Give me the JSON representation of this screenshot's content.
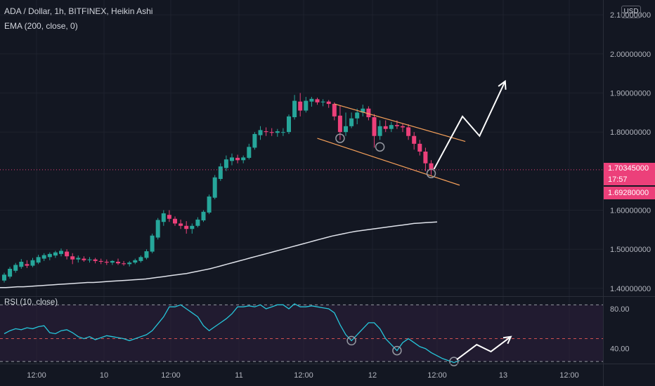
{
  "header": {
    "symbol_line": "ADA / Dollar, 1h, BITFINEX, Heikin Ashi",
    "ema_label": "EMA (200, close, 0)",
    "rsi_label": "RSI (10, close)",
    "currency_button": "USD"
  },
  "price_tags": {
    "current": "1.70345000",
    "countdown": "17:57",
    "low": "1.69280000"
  },
  "colors": {
    "background": "#131722",
    "up": "#26a69a",
    "down": "#ef5350",
    "down_body": "#ec407a",
    "ema": "#e0e3eb",
    "rsi_line": "#26c6da",
    "rsi_band": "#2d1f3d",
    "channel": "#f7a15a",
    "arrow": "#ffffff",
    "grid": "#1e222d",
    "price_tag": "#ec407a"
  },
  "chart_data": [
    {
      "type": "candlestick",
      "title": "ADA / Dollar, 1h, BITFINEX, Heikin Ashi",
      "y_axis": {
        "ticks": [
          "2.10000000",
          "2.00000000",
          "1.90000000",
          "1.80000000",
          "1.60000000",
          "1.50000000",
          "1.40000000"
        ],
        "tick_values": [
          2.1,
          2.0,
          1.9,
          1.8,
          1.6,
          1.5,
          1.4
        ],
        "ylim": [
          1.38,
          2.12
        ]
      },
      "x_axis": {
        "ticks": [
          "12:00",
          "10",
          "12:00",
          "11",
          "12:00",
          "12",
          "12:00",
          "13",
          "12:00"
        ]
      },
      "current_price": 1.70345,
      "low_line": 1.6928,
      "candles": [
        {
          "o": 1.42,
          "h": 1.44,
          "l": 1.415,
          "c": 1.435
        },
        {
          "o": 1.43,
          "h": 1.455,
          "l": 1.425,
          "c": 1.45
        },
        {
          "o": 1.445,
          "h": 1.465,
          "l": 1.44,
          "c": 1.46
        },
        {
          "o": 1.455,
          "h": 1.475,
          "l": 1.45,
          "c": 1.468
        },
        {
          "o": 1.462,
          "h": 1.472,
          "l": 1.452,
          "c": 1.458
        },
        {
          "o": 1.458,
          "h": 1.478,
          "l": 1.454,
          "c": 1.472
        },
        {
          "o": 1.466,
          "h": 1.486,
          "l": 1.462,
          "c": 1.48
        },
        {
          "o": 1.476,
          "h": 1.49,
          "l": 1.47,
          "c": 1.485
        },
        {
          "o": 1.48,
          "h": 1.492,
          "l": 1.472,
          "c": 1.488
        },
        {
          "o": 1.484,
          "h": 1.496,
          "l": 1.478,
          "c": 1.492
        },
        {
          "o": 1.488,
          "h": 1.502,
          "l": 1.482,
          "c": 1.496
        },
        {
          "o": 1.494,
          "h": 1.5,
          "l": 1.474,
          "c": 1.482
        },
        {
          "o": 1.482,
          "h": 1.49,
          "l": 1.462,
          "c": 1.474
        },
        {
          "o": 1.474,
          "h": 1.484,
          "l": 1.466,
          "c": 1.478
        },
        {
          "o": 1.476,
          "h": 1.482,
          "l": 1.468,
          "c": 1.472
        },
        {
          "o": 1.472,
          "h": 1.48,
          "l": 1.466,
          "c": 1.474
        },
        {
          "o": 1.474,
          "h": 1.478,
          "l": 1.464,
          "c": 1.47
        },
        {
          "o": 1.47,
          "h": 1.476,
          "l": 1.462,
          "c": 1.468
        },
        {
          "o": 1.468,
          "h": 1.474,
          "l": 1.46,
          "c": 1.466
        },
        {
          "o": 1.466,
          "h": 1.472,
          "l": 1.46,
          "c": 1.47
        },
        {
          "o": 1.468,
          "h": 1.476,
          "l": 1.46,
          "c": 1.464
        },
        {
          "o": 1.464,
          "h": 1.47,
          "l": 1.458,
          "c": 1.462
        },
        {
          "o": 1.462,
          "h": 1.47,
          "l": 1.456,
          "c": 1.466
        },
        {
          "o": 1.466,
          "h": 1.476,
          "l": 1.462,
          "c": 1.472
        },
        {
          "o": 1.47,
          "h": 1.484,
          "l": 1.466,
          "c": 1.48
        },
        {
          "o": 1.478,
          "h": 1.5,
          "l": 1.474,
          "c": 1.495
        },
        {
          "o": 1.494,
          "h": 1.54,
          "l": 1.49,
          "c": 1.535
        },
        {
          "o": 1.53,
          "h": 1.58,
          "l": 1.525,
          "c": 1.575
        },
        {
          "o": 1.57,
          "h": 1.6,
          "l": 1.56,
          "c": 1.592
        },
        {
          "o": 1.588,
          "h": 1.6,
          "l": 1.57,
          "c": 1.578
        },
        {
          "o": 1.578,
          "h": 1.584,
          "l": 1.56,
          "c": 1.566
        },
        {
          "o": 1.566,
          "h": 1.576,
          "l": 1.552,
          "c": 1.56
        },
        {
          "o": 1.56,
          "h": 1.572,
          "l": 1.54,
          "c": 1.552
        },
        {
          "o": 1.552,
          "h": 1.566,
          "l": 1.54,
          "c": 1.56
        },
        {
          "o": 1.56,
          "h": 1.582,
          "l": 1.556,
          "c": 1.576
        },
        {
          "o": 1.574,
          "h": 1.6,
          "l": 1.57,
          "c": 1.596
        },
        {
          "o": 1.594,
          "h": 1.64,
          "l": 1.59,
          "c": 1.635
        },
        {
          "o": 1.632,
          "h": 1.69,
          "l": 1.628,
          "c": 1.684
        },
        {
          "o": 1.68,
          "h": 1.72,
          "l": 1.675,
          "c": 1.712
        },
        {
          "o": 1.708,
          "h": 1.74,
          "l": 1.7,
          "c": 1.73
        },
        {
          "o": 1.726,
          "h": 1.745,
          "l": 1.715,
          "c": 1.735
        },
        {
          "o": 1.734,
          "h": 1.742,
          "l": 1.72,
          "c": 1.728
        },
        {
          "o": 1.728,
          "h": 1.74,
          "l": 1.72,
          "c": 1.735
        },
        {
          "o": 1.734,
          "h": 1.77,
          "l": 1.73,
          "c": 1.762
        },
        {
          "o": 1.76,
          "h": 1.8,
          "l": 1.755,
          "c": 1.795
        },
        {
          "o": 1.792,
          "h": 1.815,
          "l": 1.78,
          "c": 1.805
        },
        {
          "o": 1.802,
          "h": 1.812,
          "l": 1.79,
          "c": 1.8
        },
        {
          "o": 1.8,
          "h": 1.81,
          "l": 1.79,
          "c": 1.798
        },
        {
          "o": 1.798,
          "h": 1.808,
          "l": 1.788,
          "c": 1.802
        },
        {
          "o": 1.8,
          "h": 1.81,
          "l": 1.79,
          "c": 1.8
        },
        {
          "o": 1.8,
          "h": 1.845,
          "l": 1.795,
          "c": 1.84
        },
        {
          "o": 1.838,
          "h": 1.895,
          "l": 1.832,
          "c": 1.88
        },
        {
          "o": 1.878,
          "h": 1.9,
          "l": 1.84,
          "c": 1.855
        },
        {
          "o": 1.855,
          "h": 1.89,
          "l": 1.85,
          "c": 1.88
        },
        {
          "o": 1.878,
          "h": 1.89,
          "l": 1.865,
          "c": 1.885
        },
        {
          "o": 1.884,
          "h": 1.888,
          "l": 1.87,
          "c": 1.876
        },
        {
          "o": 1.876,
          "h": 1.884,
          "l": 1.866,
          "c": 1.878
        },
        {
          "o": 1.878,
          "h": 1.882,
          "l": 1.862,
          "c": 1.872
        },
        {
          "o": 1.872,
          "h": 1.876,
          "l": 1.83,
          "c": 1.84
        },
        {
          "o": 1.842,
          "h": 1.868,
          "l": 1.78,
          "c": 1.8
        },
        {
          "o": 1.8,
          "h": 1.85,
          "l": 1.79,
          "c": 1.815
        },
        {
          "o": 1.815,
          "h": 1.85,
          "l": 1.81,
          "c": 1.835
        },
        {
          "o": 1.835,
          "h": 1.86,
          "l": 1.82,
          "c": 1.85
        },
        {
          "o": 1.85,
          "h": 1.87,
          "l": 1.84,
          "c": 1.86
        },
        {
          "o": 1.86,
          "h": 1.866,
          "l": 1.83,
          "c": 1.838
        },
        {
          "o": 1.838,
          "h": 1.846,
          "l": 1.76,
          "c": 1.79
        },
        {
          "o": 1.79,
          "h": 1.83,
          "l": 1.78,
          "c": 1.815
        },
        {
          "o": 1.815,
          "h": 1.83,
          "l": 1.8,
          "c": 1.808
        },
        {
          "o": 1.808,
          "h": 1.826,
          "l": 1.8,
          "c": 1.818
        },
        {
          "o": 1.818,
          "h": 1.83,
          "l": 1.808,
          "c": 1.815
        },
        {
          "o": 1.815,
          "h": 1.822,
          "l": 1.8,
          "c": 1.812
        },
        {
          "o": 1.812,
          "h": 1.82,
          "l": 1.78,
          "c": 1.79
        },
        {
          "o": 1.79,
          "h": 1.8,
          "l": 1.755,
          "c": 1.77
        },
        {
          "o": 1.77,
          "h": 1.78,
          "l": 1.74,
          "c": 1.75
        },
        {
          "o": 1.75,
          "h": 1.76,
          "l": 1.7,
          "c": 1.72
        },
        {
          "o": 1.72,
          "h": 1.728,
          "l": 1.69,
          "c": 1.703
        }
      ],
      "ema_200": [
        1.402,
        1.402,
        1.403,
        1.404,
        1.404,
        1.405,
        1.406,
        1.407,
        1.408,
        1.409,
        1.41,
        1.411,
        1.412,
        1.413,
        1.414,
        1.415,
        1.415,
        1.416,
        1.417,
        1.418,
        1.419,
        1.42,
        1.421,
        1.422,
        1.423,
        1.424,
        1.426,
        1.428,
        1.43,
        1.432,
        1.434,
        1.436,
        1.438,
        1.441,
        1.444,
        1.447,
        1.45,
        1.454,
        1.458,
        1.462,
        1.466,
        1.47,
        1.474,
        1.478,
        1.482,
        1.486,
        1.49,
        1.494,
        1.498,
        1.502,
        1.506,
        1.51,
        1.514,
        1.518,
        1.522,
        1.526,
        1.53,
        1.534,
        1.537,
        1.54,
        1.543,
        1.546,
        1.548,
        1.55,
        1.552,
        1.554,
        1.556,
        1.558,
        1.56,
        1.562,
        1.564,
        1.566,
        1.567,
        1.568,
        1.569,
        1.57
      ],
      "annotations": {
        "channel_upper": {
          "from": [
            58,
            1.872
          ],
          "to": [
            81,
            1.776
          ]
        },
        "channel_lower": {
          "from": [
            55,
            1.784
          ],
          "to": [
            80,
            1.664
          ]
        },
        "circles": [
          {
            "i": 59,
            "v": 1.784
          },
          {
            "i": 66,
            "v": 1.762
          },
          {
            "i": 75,
            "v": 1.694
          }
        ],
        "arrow": [
          [
            75.5,
            1.705
          ],
          [
            80.5,
            1.84
          ],
          [
            83.5,
            1.79
          ],
          [
            88,
            1.93
          ]
        ]
      }
    },
    {
      "type": "line",
      "title": "RSI (10, close)",
      "y_axis": {
        "ticks": [
          "80.00",
          "40.00"
        ],
        "tick_values": [
          80,
          40
        ],
        "ylim": [
          25,
          92
        ]
      },
      "levels": {
        "upper": 84,
        "middle": 50,
        "lower": 27
      },
      "values": [
        55,
        58,
        60,
        59,
        61,
        60,
        62,
        63,
        56,
        55,
        58,
        59,
        56,
        52,
        50,
        52,
        49,
        51,
        53,
        52,
        51,
        50,
        48,
        50,
        52,
        54,
        58,
        65,
        72,
        82,
        82,
        84,
        80,
        76,
        72,
        63,
        58,
        62,
        66,
        70,
        75,
        82,
        82,
        83,
        82,
        84,
        80,
        82,
        84,
        84,
        80,
        85,
        82,
        82,
        83,
        82,
        81,
        80,
        76,
        64,
        54,
        48,
        54,
        60,
        66,
        66,
        60,
        50,
        44,
        38,
        46,
        50,
        46,
        42,
        40,
        36,
        33,
        30,
        28,
        26,
        28
      ],
      "annotations": {
        "circles": [
          {
            "i": 61,
            "v": 48
          },
          {
            "i": 69,
            "v": 38
          },
          {
            "i": 79,
            "v": 27
          }
        ],
        "arrow": [
          [
            79.5,
            29
          ],
          [
            83,
            44
          ],
          [
            85.5,
            37
          ],
          [
            89,
            52
          ]
        ]
      }
    }
  ]
}
